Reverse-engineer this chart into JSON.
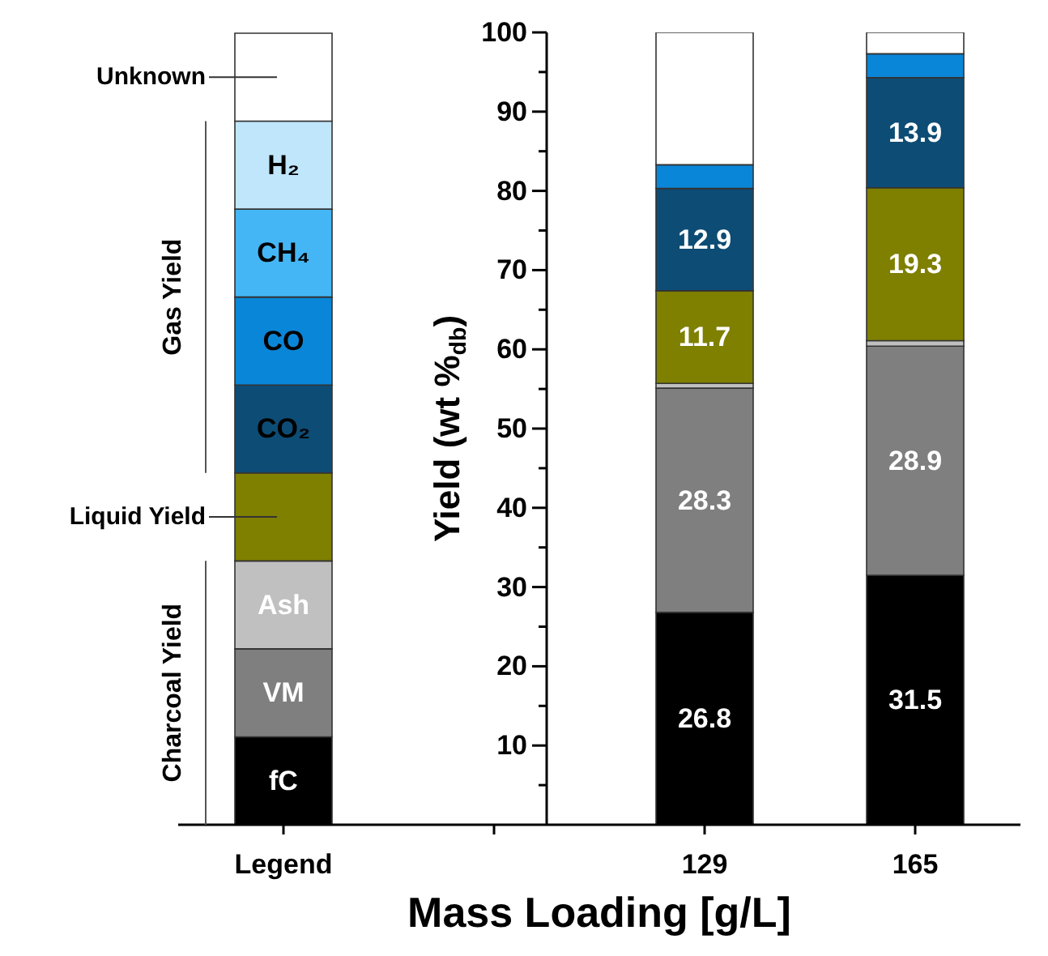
{
  "chart_data": {
    "type": "bar",
    "stacked": true,
    "xlabel": "Mass Loading [g/L]",
    "ylabel": "Yield (wt %$_{db}$)",
    "categories": [
      "Legend",
      null,
      "129",
      "165"
    ],
    "ylim": [
      0,
      100
    ],
    "yticks": [
      10,
      20,
      30,
      40,
      50,
      60,
      70,
      80,
      90,
      100
    ],
    "series": [
      {
        "name": "fC",
        "color": "#000000",
        "values": [
          11.1,
          null,
          26.8,
          31.5
        ],
        "value_labels": [
          null,
          null,
          "26.8",
          "31.5"
        ]
      },
      {
        "name": "VM",
        "color": "#7f7f7f",
        "values": [
          11.1,
          null,
          28.3,
          28.9
        ],
        "value_labels": [
          null,
          null,
          "28.3",
          "28.9"
        ]
      },
      {
        "name": "Ash",
        "color": "#c0c0c0",
        "values": [
          11.1,
          null,
          0.6,
          0.7
        ],
        "value_labels": [
          null,
          null,
          null,
          null
        ]
      },
      {
        "name": "Liquid Yield",
        "color": "#7f7f00",
        "values": [
          11.1,
          null,
          11.7,
          19.3
        ],
        "value_labels": [
          null,
          null,
          "11.7",
          "19.3"
        ]
      },
      {
        "name": "CO₂",
        "color": "#0d4c74",
        "values": [
          11.1,
          null,
          12.9,
          13.9
        ],
        "value_labels": [
          null,
          null,
          "12.9",
          "13.9"
        ]
      },
      {
        "name": "CO",
        "color": "#0a86d8",
        "values": [
          11.1,
          null,
          3.0,
          3.0
        ],
        "value_labels": [
          null,
          null,
          null,
          null
        ]
      },
      {
        "name": "CH₄",
        "color": "#44b6f5",
        "values": [
          11.1,
          null,
          0,
          0
        ],
        "value_labels": [
          null,
          null,
          null,
          null
        ]
      },
      {
        "name": "H₂",
        "color": "#bfe6fb",
        "values": [
          11.1,
          null,
          0,
          0
        ],
        "value_labels": [
          null,
          null,
          null,
          null
        ]
      },
      {
        "name": "Unknown",
        "color": "#ffffff",
        "values": [
          11.1,
          null,
          16.7,
          2.7
        ],
        "value_labels": [
          null,
          null,
          null,
          null
        ]
      }
    ],
    "legend": "left",
    "annotations": [
      "Gas Yield",
      "Charcoal Yield"
    ]
  }
}
